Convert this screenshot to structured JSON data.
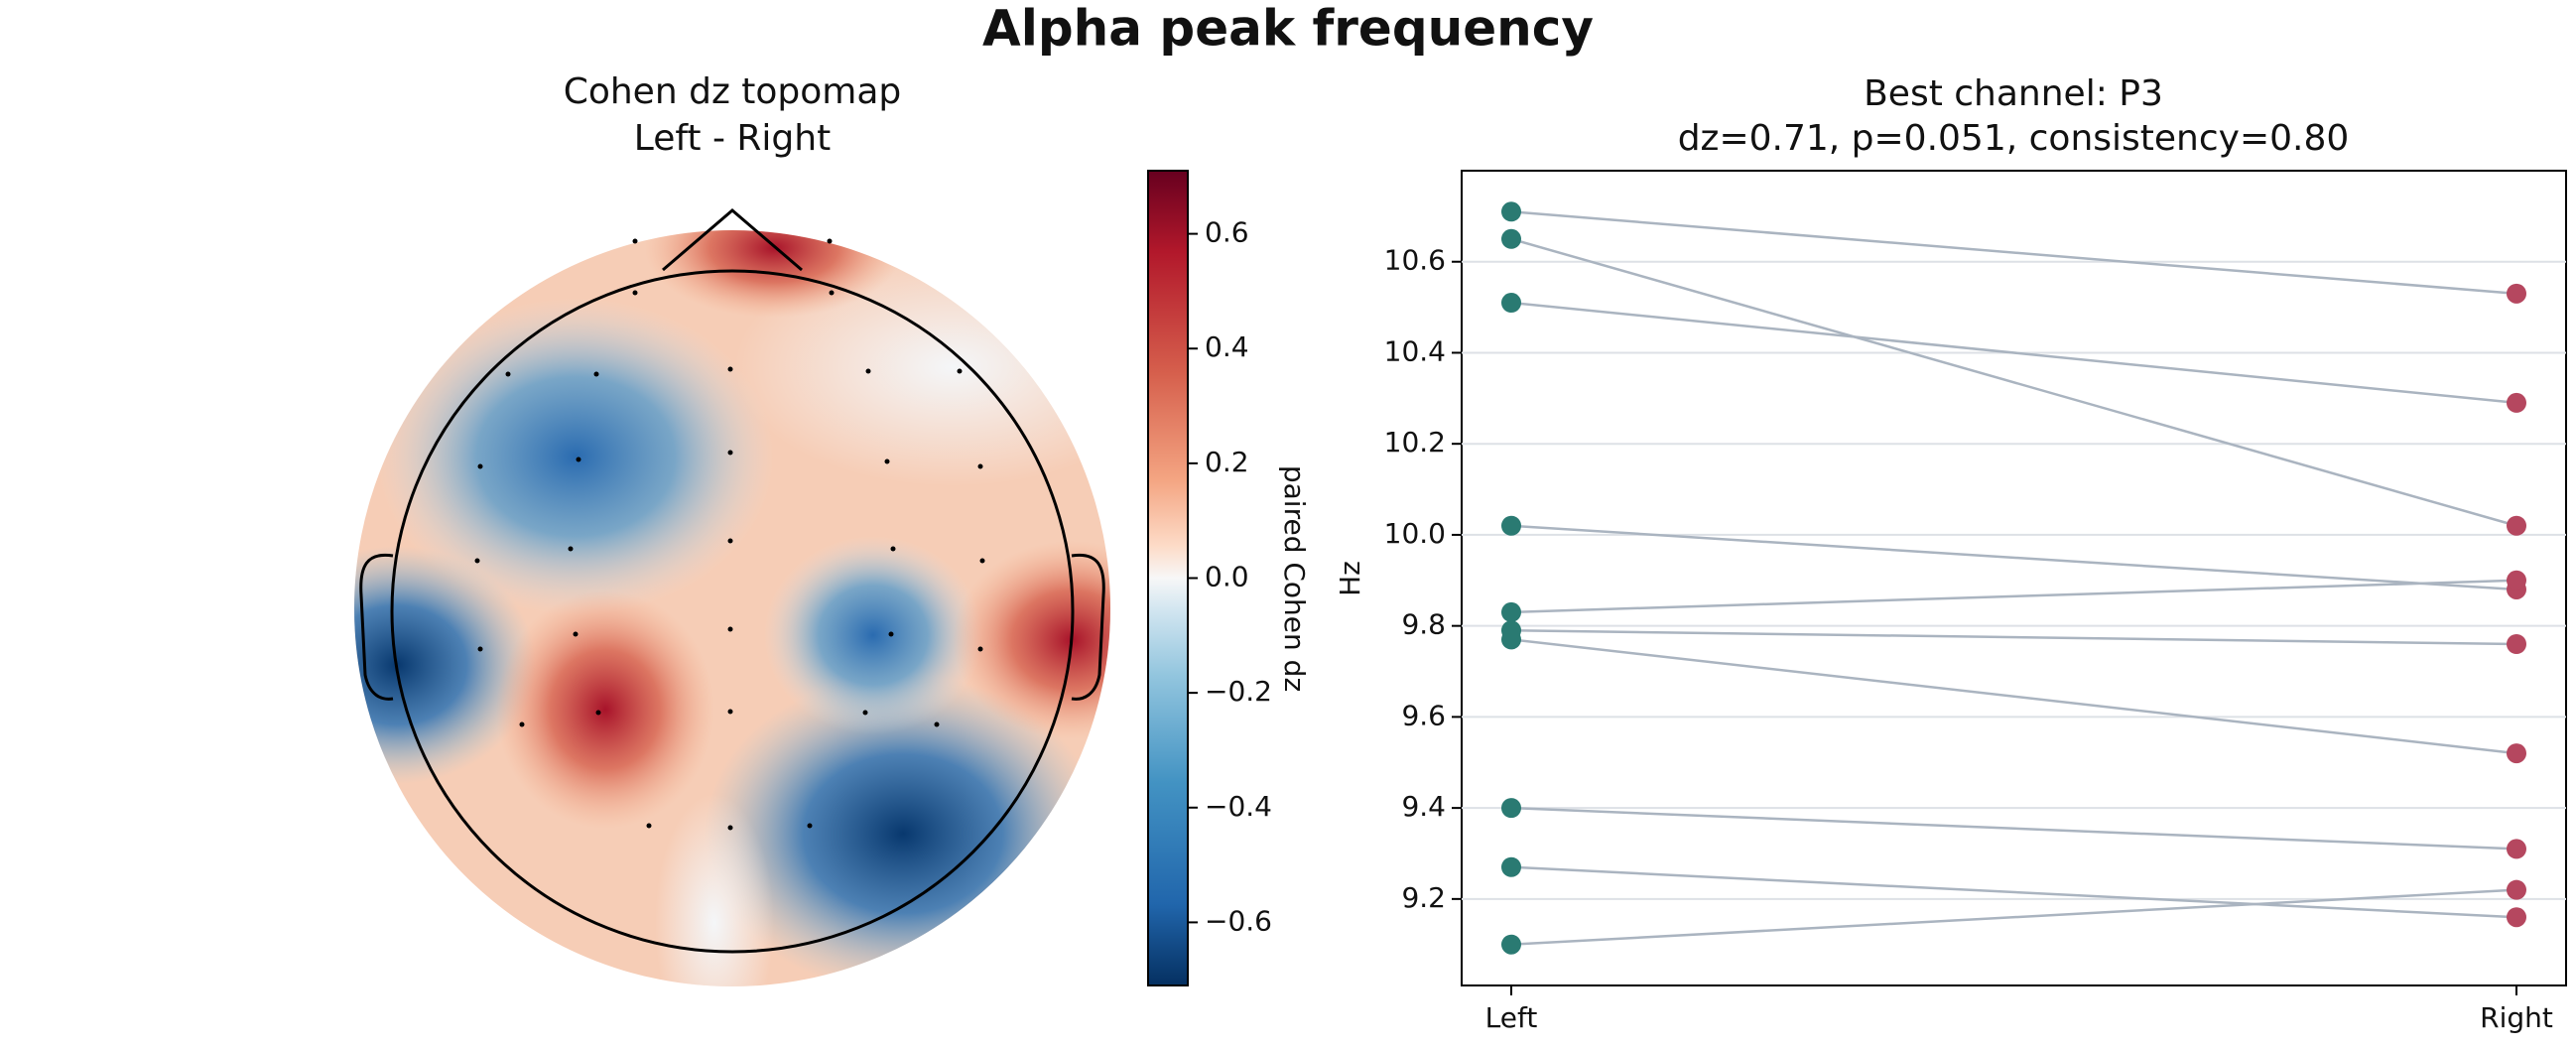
{
  "title": "Alpha peak frequency",
  "topomap": {
    "title": "Cohen dz topomap",
    "subtitle": "Left - Right",
    "colorbar_label": "paired Cohen dz",
    "clim": [
      -0.71,
      0.71
    ],
    "cticks": [
      {
        "value": -0.6,
        "label": "−0.6"
      },
      {
        "value": -0.4,
        "label": "−0.4"
      },
      {
        "value": -0.2,
        "label": "−0.2"
      },
      {
        "value": 0,
        "label": "0.0"
      },
      0.2,
      0.4,
      0.6
    ]
  },
  "chart_data": {
    "type": "slope",
    "title": "Best channel: P3",
    "subtitle": "dz=0.71, p=0.051, consistency=0.80",
    "ylabel": "Hz",
    "categories": [
      "Left",
      "Right"
    ],
    "pairs": [
      [
        10.71,
        10.53
      ],
      [
        10.65,
        10.02
      ],
      [
        10.51,
        10.29
      ],
      [
        10.02,
        9.88
      ],
      [
        9.83,
        9.9
      ],
      [
        9.79,
        9.76
      ],
      [
        9.77,
        9.52
      ],
      [
        9.4,
        9.31
      ],
      [
        9.27,
        9.16
      ],
      [
        9.1,
        9.22
      ]
    ],
    "colors": [
      "#2a7a72",
      "#b5475f"
    ],
    "line_color": "#aab4c0",
    "ylim": [
      9.01,
      10.8
    ],
    "yticks": [
      9.2,
      9.4,
      9.6,
      9.8,
      {
        "value": 10,
        "label": "10.0"
      },
      10.2,
      10.4,
      10.6
    ],
    "grid": true
  }
}
